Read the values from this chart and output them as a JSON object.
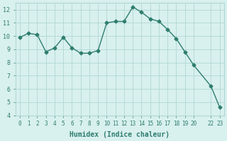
{
  "x": [
    0,
    1,
    2,
    3,
    4,
    5,
    6,
    7,
    8,
    9,
    10,
    11,
    12,
    13,
    14,
    15,
    16,
    17,
    18,
    19,
    20,
    22,
    23
  ],
  "y": [
    9.9,
    10.2,
    10.1,
    8.8,
    9.1,
    9.9,
    9.1,
    8.7,
    8.7,
    8.9,
    11.0,
    11.1,
    11.1,
    12.2,
    11.8,
    11.3,
    11.1,
    10.5,
    9.8,
    8.8,
    7.8,
    6.2,
    4.6
  ],
  "x_ticks": [
    0,
    1,
    2,
    3,
    4,
    5,
    6,
    7,
    8,
    9,
    10,
    11,
    12,
    13,
    14,
    15,
    16,
    17,
    18,
    19,
    20,
    22,
    23
  ],
  "x_tick_labels": [
    "0",
    "1",
    "2",
    "3",
    "4",
    "5",
    "6",
    "7",
    "8",
    "9",
    "10",
    "11",
    "12",
    "13",
    "14",
    "15",
    "16",
    "17",
    "18",
    "19",
    "20",
    "22",
    "23"
  ],
  "y_ticks": [
    4,
    5,
    6,
    7,
    8,
    9,
    10,
    11,
    12
  ],
  "xlabel": "Humidex (Indice chaleur)",
  "ylim": [
    4,
    12.5
  ],
  "xlim": [
    -0.5,
    23.5
  ],
  "line_color": "#2e7d6e",
  "marker_color": "#2e7d6e",
  "bg_color": "#d8f0ee",
  "grid_color": "#b0d8d4",
  "title_color": "#2e7d6e",
  "xlabel_color": "#2e7d6e"
}
